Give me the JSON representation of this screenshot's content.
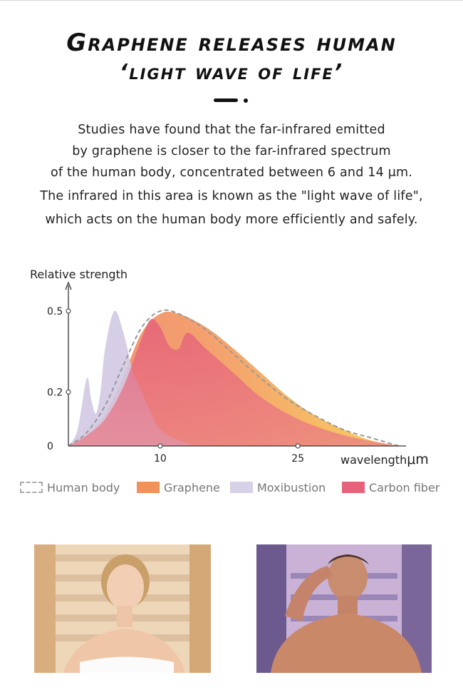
{
  "header": {
    "title_line1": "Graphene releases human",
    "title_line2": "‘light wave of life’"
  },
  "description": {
    "lines": [
      "Studies have found that the far-infrared emitted",
      "by graphene is closer to the far-infrared spectrum",
      "of the human body, concentrated between 6 and 14 μm.",
      "The infrared in this area is known as the \"light wave of life\",",
      "which acts on the human body more efficiently and safely."
    ]
  },
  "chart_data": {
    "type": "area",
    "ylabel": "Relative strength",
    "xlabel": "wavelength",
    "x_unit": "μm",
    "x_ticks": [
      "10",
      "25"
    ],
    "y_ticks": [
      "0.5",
      "0.2",
      "0"
    ],
    "xlim": [
      0,
      36
    ],
    "ylim": [
      0,
      0.55
    ],
    "series": [
      {
        "name": "Human body",
        "style": "dashed-line",
        "color": "#999999",
        "x": [
          0,
          2,
          4,
          6,
          8,
          10,
          12,
          15,
          18,
          21,
          24,
          27,
          30,
          33,
          36
        ],
        "values": [
          0,
          0.05,
          0.15,
          0.3,
          0.44,
          0.5,
          0.49,
          0.43,
          0.34,
          0.25,
          0.17,
          0.11,
          0.06,
          0.03,
          0
        ]
      },
      {
        "name": "Graphene",
        "style": "area",
        "color": "#f0925a",
        "x": [
          0,
          2,
          4,
          6,
          8,
          10,
          12,
          15,
          18,
          21,
          24,
          27,
          30,
          33,
          36
        ],
        "values": [
          0,
          0.04,
          0.12,
          0.26,
          0.42,
          0.49,
          0.49,
          0.44,
          0.36,
          0.27,
          0.18,
          0.11,
          0.06,
          0.02,
          0
        ]
      },
      {
        "name": "Moxibustion",
        "style": "area",
        "color": "#cfc6e0",
        "x": [
          0,
          1,
          2,
          2.5,
          3,
          3.5,
          4,
          5,
          6,
          7,
          8,
          9,
          10,
          12,
          14
        ],
        "values": [
          0,
          0.06,
          0.25,
          0.17,
          0.12,
          0.2,
          0.36,
          0.5,
          0.42,
          0.28,
          0.2,
          0.12,
          0.06,
          0.02,
          0
        ]
      },
      {
        "name": "Carbon fiber",
        "style": "area",
        "color": "#e8617a",
        "x": [
          0,
          2,
          4,
          6,
          8,
          9,
          10,
          11,
          12,
          13,
          15,
          18,
          21,
          25,
          30,
          36
        ],
        "values": [
          0,
          0.04,
          0.1,
          0.22,
          0.4,
          0.47,
          0.44,
          0.37,
          0.36,
          0.42,
          0.36,
          0.27,
          0.18,
          0.1,
          0.04,
          0
        ]
      }
    ]
  },
  "photos": [
    {
      "label": "woman-in-sauna"
    },
    {
      "label": "man-in-sauna"
    }
  ]
}
